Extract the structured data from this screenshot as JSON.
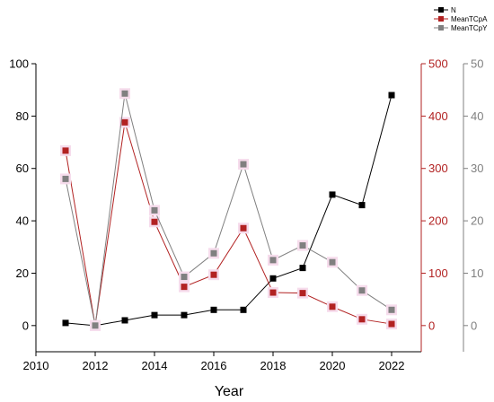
{
  "chart_data": {
    "type": "line",
    "xlabel": "Year",
    "xlim": [
      2010,
      2023
    ],
    "x_ticks": [
      2010,
      2012,
      2014,
      2016,
      2018,
      2020,
      2022
    ],
    "x": [
      2011,
      2012,
      2013,
      2014,
      2015,
      2016,
      2017,
      2018,
      2019,
      2020,
      2021,
      2022
    ],
    "legend_position": "top-right",
    "grid": false,
    "axes": [
      {
        "id": "left",
        "side": "left",
        "ylim": [
          -10,
          100
        ],
        "ticks": [
          0,
          20,
          40,
          60,
          80,
          100
        ],
        "color": "#000000"
      },
      {
        "id": "right1",
        "side": "right",
        "ylim": [
          -50,
          500
        ],
        "ticks": [
          0,
          100,
          200,
          300,
          400,
          500
        ],
        "color": "#b22222"
      },
      {
        "id": "right2",
        "side": "right-offset",
        "ylim": [
          -5,
          50
        ],
        "ticks": [
          0,
          10,
          20,
          30,
          40,
          50
        ],
        "color": "#808080"
      }
    ],
    "series": [
      {
        "name": "N",
        "axis": "left",
        "color": "#000000",
        "values": [
          1,
          0,
          2,
          4,
          4,
          6,
          6,
          18,
          22,
          50,
          46,
          88
        ]
      },
      {
        "name": "MeanTCpA",
        "axis": "right1",
        "color": "#b22222",
        "values": [
          334,
          0,
          388,
          198,
          74,
          97,
          186,
          63,
          62,
          36,
          12,
          3
        ]
      },
      {
        "name": "MeanTCpY",
        "axis": "right2",
        "color": "#808080",
        "values": [
          28,
          0,
          44.3,
          22,
          9.3,
          13.8,
          30.8,
          12.5,
          15.3,
          12.1,
          6.7,
          3
        ]
      }
    ]
  }
}
